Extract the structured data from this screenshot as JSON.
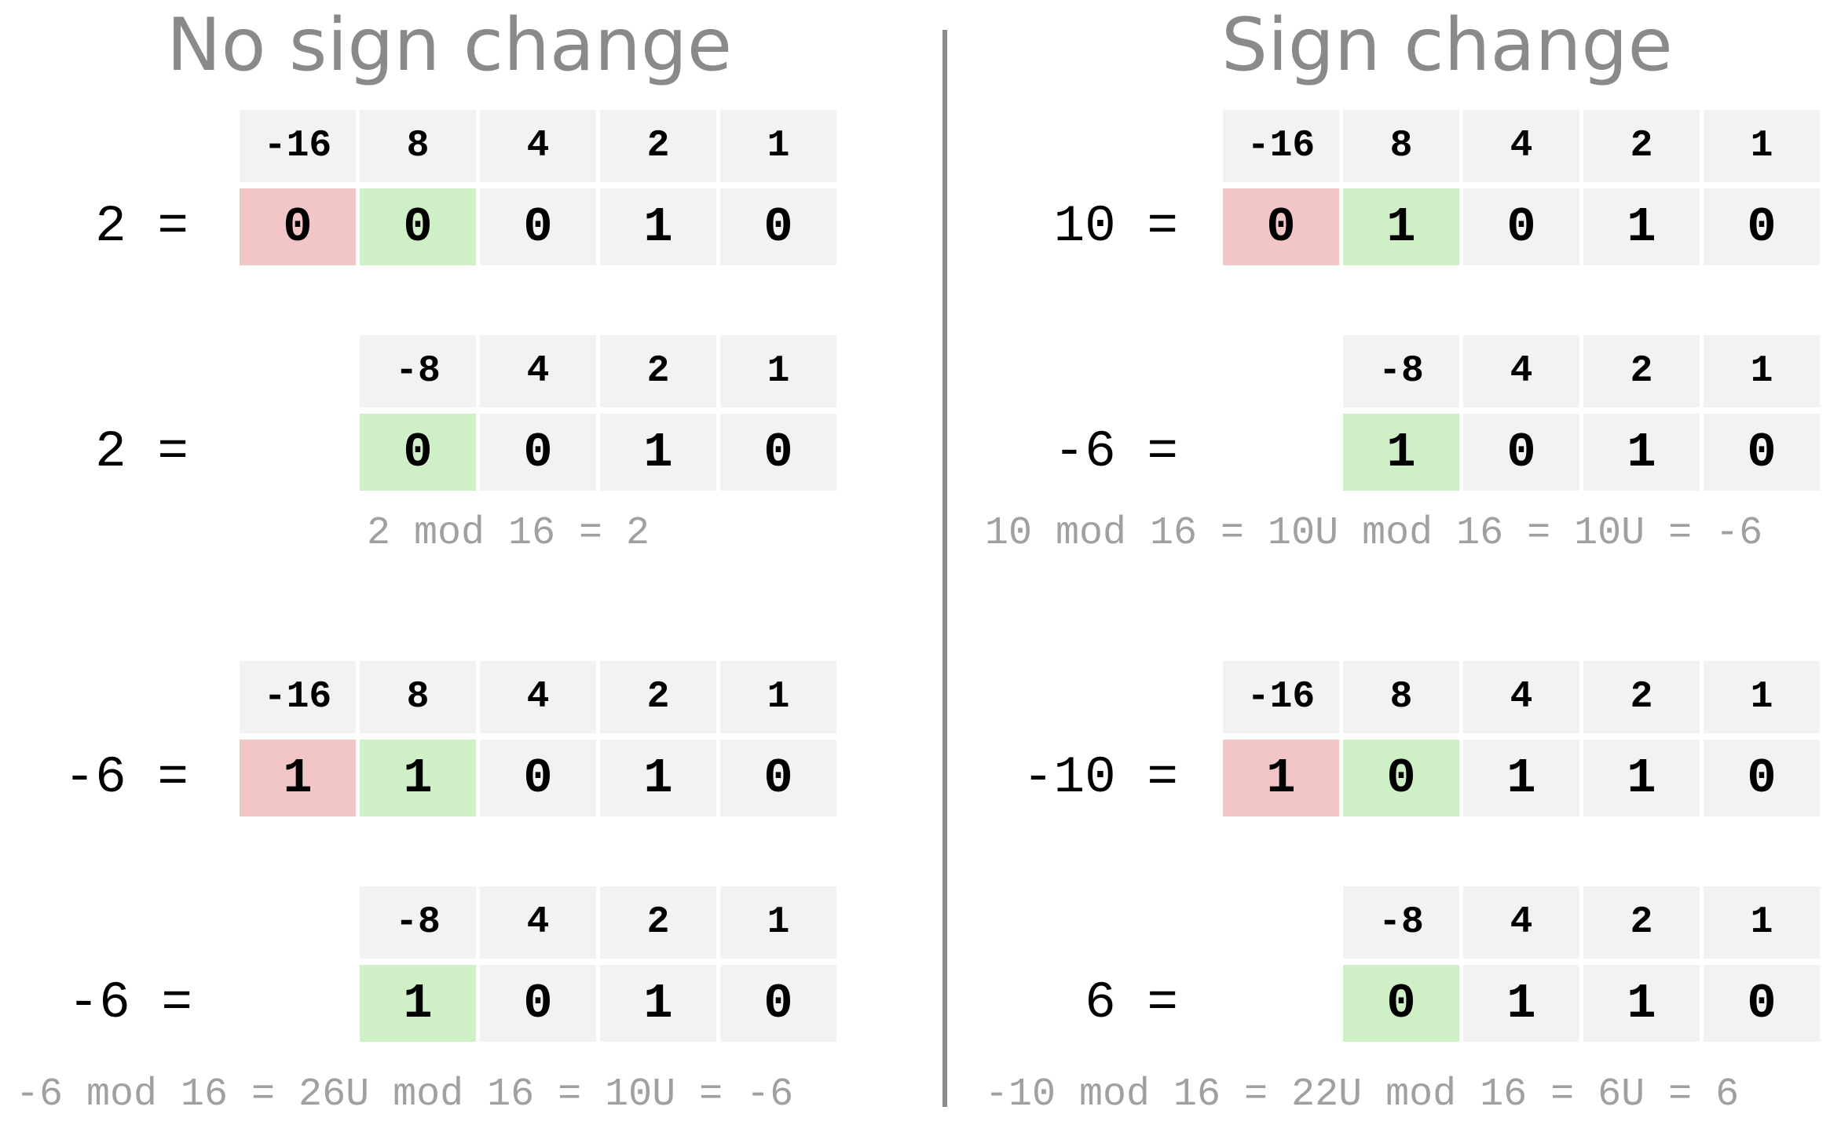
{
  "left": {
    "title": "No sign change",
    "examples": [
      {
        "five": {
          "lhs": "2 =",
          "weights": [
            "-16",
            "8",
            "4",
            "2",
            "1"
          ],
          "bits": [
            "0",
            "0",
            "0",
            "1",
            "0"
          ]
        },
        "four": {
          "lhs": "2 =",
          "weights": [
            "-8",
            "4",
            "2",
            "1"
          ],
          "bits": [
            "0",
            "0",
            "1",
            "0"
          ]
        },
        "note": "2 mod 16 = 2"
      },
      {
        "five": {
          "lhs": "-6 =",
          "weights": [
            "-16",
            "8",
            "4",
            "2",
            "1"
          ],
          "bits": [
            "1",
            "1",
            "0",
            "1",
            "0"
          ]
        },
        "four": {
          "lhs": "-6 =",
          "weights": [
            "-8",
            "4",
            "2",
            "1"
          ],
          "bits": [
            "1",
            "0",
            "1",
            "0"
          ]
        },
        "note": "-6 mod 16 = 26U mod 16 = 10U = -6"
      }
    ]
  },
  "right": {
    "title": "Sign change",
    "examples": [
      {
        "five": {
          "lhs": "10 =",
          "weights": [
            "-16",
            "8",
            "4",
            "2",
            "1"
          ],
          "bits": [
            "0",
            "1",
            "0",
            "1",
            "0"
          ]
        },
        "four": {
          "lhs": "-6 =",
          "weights": [
            "-8",
            "4",
            "2",
            "1"
          ],
          "bits": [
            "1",
            "0",
            "1",
            "0"
          ]
        },
        "note": "10 mod 16 = 10U mod 16 = 10U = -6"
      },
      {
        "five": {
          "lhs": "-10 =",
          "weights": [
            "-16",
            "8",
            "4",
            "2",
            "1"
          ],
          "bits": [
            "1",
            "0",
            "1",
            "1",
            "0"
          ]
        },
        "four": {
          "lhs": "6 =",
          "weights": [
            "-8",
            "4",
            "2",
            "1"
          ],
          "bits": [
            "0",
            "1",
            "1",
            "0"
          ]
        },
        "note": "-10 mod 16 = 22U mod 16 = 6U = 6"
      }
    ]
  },
  "colors": {
    "sign_bit": "#f2c6c6",
    "upper_bit": "#cff0c6",
    "cell": "#f2f2f2",
    "title": "#8a8a8a",
    "note": "#a0a0a0",
    "divider": "#8c8c8c"
  }
}
